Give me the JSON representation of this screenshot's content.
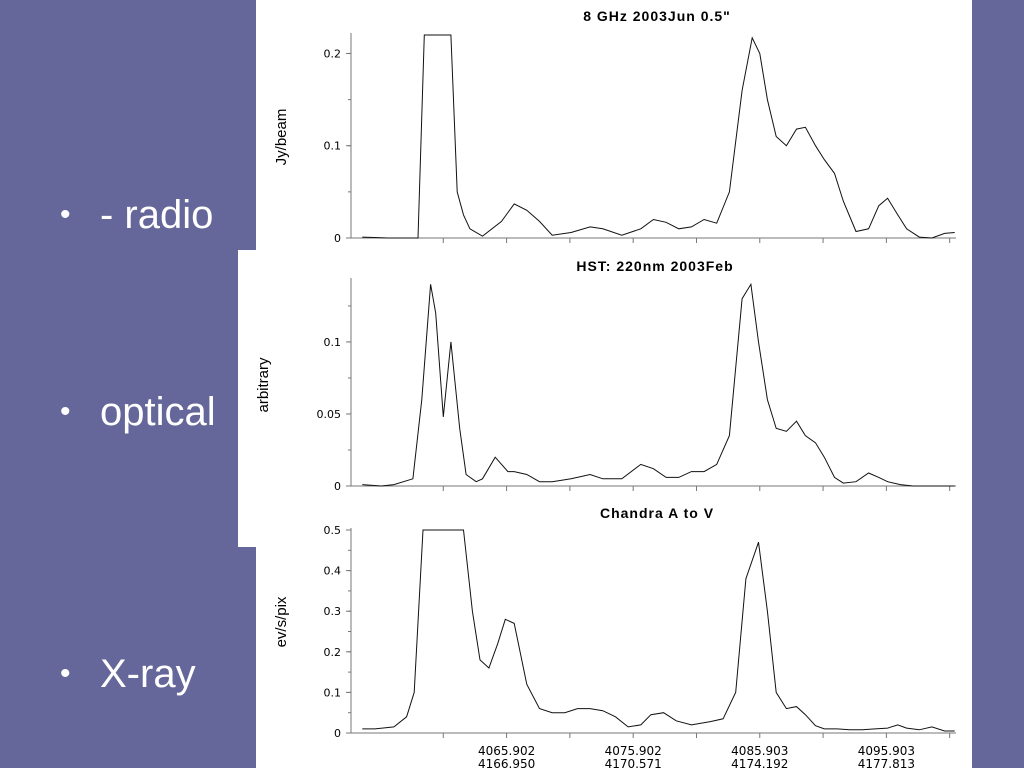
{
  "slide": {
    "bullets": [
      {
        "symbol": "•",
        "text": "- radio"
      },
      {
        "symbol": "•",
        "text": "optical"
      },
      {
        "symbol": "•",
        "text": "X-ray"
      }
    ]
  },
  "chart_data": [
    {
      "type": "line",
      "title": "8 GHz 2003Jun 0.5\"",
      "ylabel": "Jy/beam",
      "xlabel": "",
      "ylim": [
        0,
        0.22
      ],
      "xlim": [
        4054.4,
        4101.4
      ],
      "yticks": [
        "0",
        "0.1",
        "0.2"
      ],
      "ytick_values": [
        0,
        0.1,
        0.2
      ],
      "xticks": [],
      "grid": false,
      "series": [
        {
          "x": [
            4054.5,
            4056.5,
            4057.5,
            4058.9,
            4059.4,
            4059.7,
            4060.2,
            4061.0,
            4061.5,
            4062.0,
            4062.5,
            4063.0,
            4064.0,
            4065.5,
            4066.5,
            4067.5,
            4068.5,
            4069.5,
            4071.0,
            4072.5,
            4073.5,
            4075.0,
            4076.5,
            4077.5,
            4078.5,
            4079.5,
            4080.5,
            4081.5,
            4082.5,
            4083.5,
            4084.5,
            4085.3,
            4085.9,
            4086.5,
            4087.2,
            4088.0,
            4088.8,
            4089.5,
            4090.3,
            4091.0,
            4091.8,
            4092.5,
            4093.5,
            4094.5,
            4095.3,
            4096.0,
            4096.8,
            4097.5,
            4098.5,
            4099.5,
            4100.5,
            4101.3
          ],
          "y": [
            0.001,
            0.0,
            0.0,
            0.0,
            0.22,
            0.22,
            0.22,
            0.22,
            0.22,
            0.05,
            0.025,
            0.01,
            0.002,
            0.018,
            0.037,
            0.03,
            0.018,
            0.003,
            0.006,
            0.012,
            0.01,
            0.003,
            0.01,
            0.02,
            0.017,
            0.01,
            0.012,
            0.02,
            0.016,
            0.05,
            0.16,
            0.217,
            0.2,
            0.15,
            0.11,
            0.1,
            0.118,
            0.12,
            0.1,
            0.085,
            0.07,
            0.04,
            0.007,
            0.01,
            0.035,
            0.043,
            0.025,
            0.01,
            0.001,
            0.0,
            0.005,
            0.006
          ]
        }
      ]
    },
    {
      "type": "line",
      "title": "HST: 220nm 2003Feb",
      "ylabel": "arbitrary",
      "xlabel": "",
      "ylim": [
        0,
        0.143
      ],
      "xlim": [
        4054.4,
        4101.4
      ],
      "yticks": [
        "0",
        "0.05",
        "0.1"
      ],
      "ytick_values": [
        0,
        0.05,
        0.1
      ],
      "xticks": [],
      "grid": false,
      "series": [
        {
          "x": [
            4054.5,
            4056.0,
            4057.0,
            4058.5,
            4059.2,
            4059.9,
            4060.3,
            4060.9,
            4061.5,
            4062.2,
            4062.7,
            4063.5,
            4064.0,
            4065.0,
            4066.0,
            4066.5,
            4067.5,
            4068.5,
            4069.5,
            4071.0,
            4072.5,
            4073.5,
            4075.0,
            4076.5,
            4077.5,
            4078.5,
            4079.5,
            4080.5,
            4081.5,
            4082.5,
            4083.5,
            4084.5,
            4085.2,
            4085.8,
            4086.5,
            4087.2,
            4088.0,
            4088.8,
            4089.5,
            4090.3,
            4091.0,
            4091.8,
            4092.5,
            4093.5,
            4094.5,
            4095.3,
            4096.0,
            4097.0,
            4098.0,
            4099.5,
            4101.3
          ],
          "y": [
            0.001,
            0.0,
            0.001,
            0.005,
            0.06,
            0.14,
            0.12,
            0.048,
            0.1,
            0.04,
            0.008,
            0.003,
            0.005,
            0.02,
            0.01,
            0.01,
            0.008,
            0.003,
            0.003,
            0.005,
            0.008,
            0.005,
            0.005,
            0.015,
            0.012,
            0.006,
            0.006,
            0.01,
            0.01,
            0.015,
            0.035,
            0.13,
            0.14,
            0.1,
            0.06,
            0.04,
            0.038,
            0.045,
            0.035,
            0.03,
            0.02,
            0.006,
            0.002,
            0.003,
            0.009,
            0.006,
            0.003,
            0.001,
            0.0,
            0.0,
            0.0
          ]
        }
      ]
    },
    {
      "type": "line",
      "title": "Chandra A to V",
      "ylabel": "ev/s/pix",
      "xlabel": "",
      "ylim": [
        0,
        0.5
      ],
      "xlim": [
        4054.4,
        4101.4
      ],
      "yticks": [
        "0",
        "0.1",
        "0.2",
        "0.3",
        "0.4",
        "0.5"
      ],
      "ytick_values": [
        0,
        0.1,
        0.2,
        0.3,
        0.4,
        0.5
      ],
      "xticks": [
        {
          "value": 4065.902,
          "label": "4065.902",
          "label2": "4166.950"
        },
        {
          "value": 4075.902,
          "label": "4075.902",
          "label2": "4170.571"
        },
        {
          "value": 4085.903,
          "label": "4085.903",
          "label2": "4174.192"
        },
        {
          "value": 4095.903,
          "label": "4095.903",
          "label2": "4177.813"
        }
      ],
      "grid": false,
      "series": [
        {
          "x": [
            4054.5,
            4055.5,
            4057.0,
            4058.0,
            4058.6,
            4059.3,
            4060.0,
            4060.7,
            4061.5,
            4062.2,
            4062.5,
            4063.2,
            4063.8,
            4064.5,
            4065.2,
            4065.8,
            4066.5,
            4067.5,
            4068.5,
            4069.5,
            4070.5,
            4071.5,
            4072.5,
            4073.5,
            4074.5,
            4075.5,
            4076.5,
            4077.3,
            4078.3,
            4079.3,
            4080.5,
            4082.0,
            4083.0,
            4084.0,
            4084.8,
            4085.8,
            4086.5,
            4087.2,
            4088.0,
            4088.8,
            4089.5,
            4090.3,
            4091.0,
            4092.0,
            4093.0,
            4094.0,
            4095.0,
            4096.0,
            4096.8,
            4097.5,
            4098.5,
            4099.5,
            4100.5,
            4101.3
          ],
          "y": [
            0.01,
            0.01,
            0.015,
            0.04,
            0.1,
            0.5,
            0.5,
            0.5,
            0.5,
            0.5,
            0.5,
            0.3,
            0.18,
            0.16,
            0.22,
            0.28,
            0.27,
            0.12,
            0.06,
            0.05,
            0.05,
            0.06,
            0.06,
            0.055,
            0.04,
            0.015,
            0.02,
            0.045,
            0.05,
            0.03,
            0.02,
            0.028,
            0.035,
            0.1,
            0.38,
            0.47,
            0.3,
            0.1,
            0.06,
            0.065,
            0.045,
            0.018,
            0.01,
            0.01,
            0.008,
            0.008,
            0.01,
            0.012,
            0.02,
            0.012,
            0.008,
            0.015,
            0.005,
            0.005
          ]
        }
      ]
    }
  ]
}
